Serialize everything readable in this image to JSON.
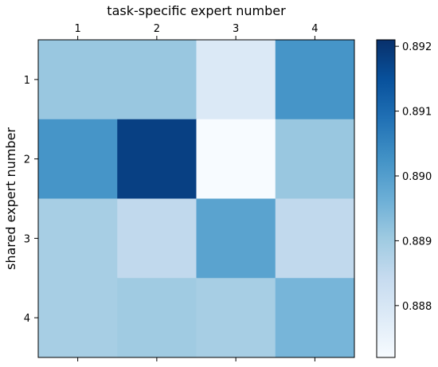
{
  "chart_data": {
    "type": "heatmap",
    "title": "",
    "xlabel": "task-specific expert number",
    "ylabel": "shared expert number",
    "x_categories": [
      "1",
      "2",
      "3",
      "4"
    ],
    "y_categories": [
      "1",
      "2",
      "3",
      "4"
    ],
    "values": [
      [
        0.8891,
        0.8891,
        0.8879,
        0.8902
      ],
      [
        0.8902,
        0.8918,
        0.8872,
        0.8891
      ],
      [
        0.8889,
        0.8885,
        0.8899,
        0.8885
      ],
      [
        0.8889,
        0.889,
        0.8889,
        0.8895
      ]
    ],
    "colorbar": {
      "min": 0.8872,
      "max": 0.8921,
      "ticks": [
        0.888,
        0.889,
        0.89,
        0.891,
        0.892
      ],
      "tick_labels": [
        "0.888",
        "0.889",
        "0.890",
        "0.891",
        "0.892"
      ]
    },
    "colormap": [
      "#f7fbff",
      "#deebf7",
      "#c6dbef",
      "#9ecae1",
      "#6baed6",
      "#4292c6",
      "#2171b5",
      "#08519c",
      "#08306b"
    ],
    "x_axis_position": "top",
    "grid": false,
    "legend": "none"
  }
}
